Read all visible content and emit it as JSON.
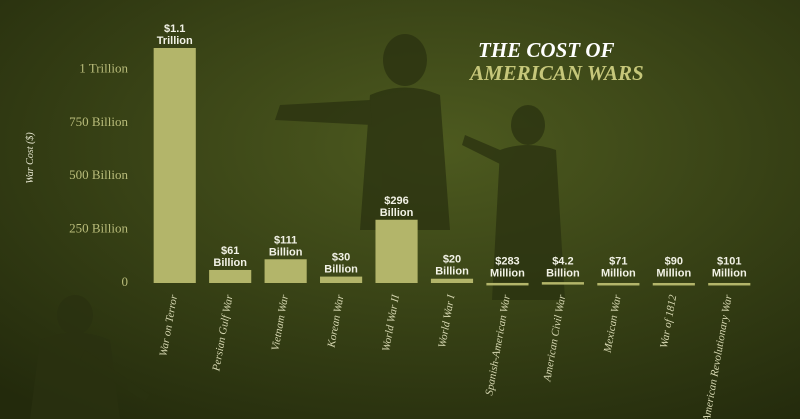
{
  "chart_data": {
    "type": "bar",
    "title": "THE COST OF",
    "subtitle": "AMERICAN WARS",
    "y_label": "War Cost ($)",
    "categories": [
      "War on Terror",
      "Persian Gulf War",
      "Vietnam War",
      "Korean War",
      "World War II",
      "World War I",
      "Spanish-American War",
      "American Civil War",
      "Mexican War",
      "War of 1812",
      "American Revolutionary War"
    ],
    "values": [
      1100000000000,
      61000000000,
      111000000000,
      30000000000,
      296000000000,
      20000000000,
      283000000,
      4200000000,
      71000000,
      90000000,
      101000000
    ],
    "value_labels": [
      "$1.1 Trillion",
      "$61 Billion",
      "$111 Billion",
      "$30 Billion",
      "$296 Billion",
      "$20 Billion",
      "$283 Million",
      "$4.2 Billion",
      "$71 Million",
      "$90 Million",
      "$101 Million"
    ],
    "color": "#b3b56a",
    "ylim": [
      0,
      1100000000000
    ],
    "yticks": [
      0,
      {
        "value": 250000000000,
        "label": "250 Billion"
      },
      {
        "value": 500000000000,
        "label": "500 Billion"
      },
      {
        "value": 750000000000,
        "label": "750 Billion"
      },
      {
        "value": 1000000000000,
        "label": "1 Trillion"
      }
    ],
    "grid": false
  }
}
